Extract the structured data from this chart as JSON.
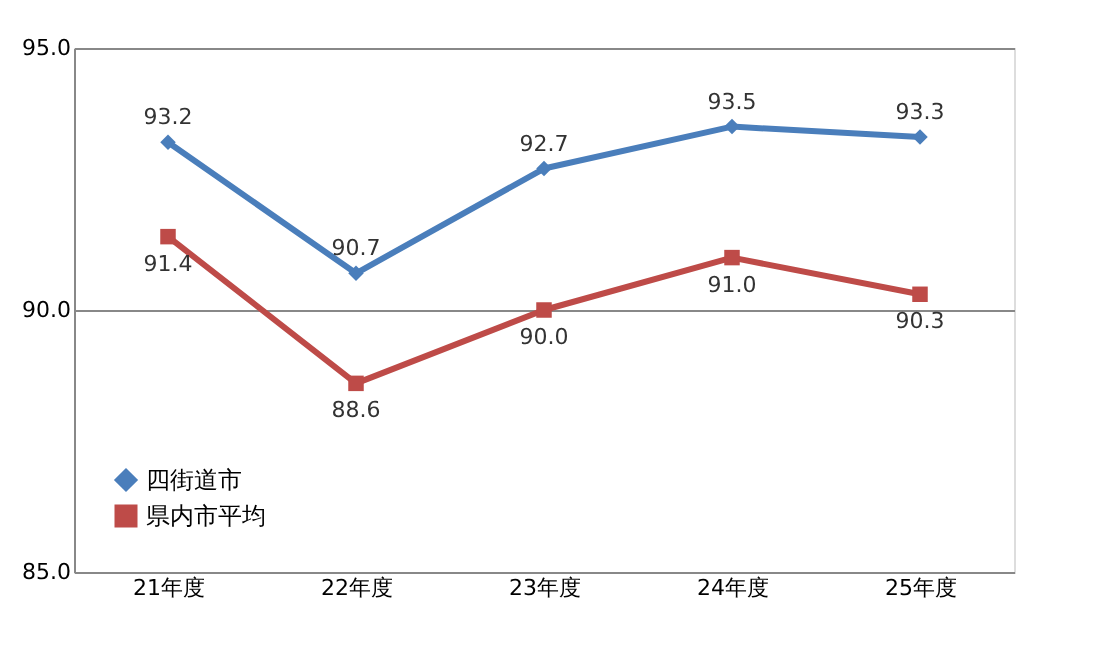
{
  "chart_data": {
    "type": "line",
    "categories": [
      "21年度",
      "22年度",
      "23年度",
      "24年度",
      "25年度"
    ],
    "series": [
      {
        "name": "四街道市",
        "color": "#4a7ebb",
        "marker": "diamond",
        "values": [
          93.2,
          90.7,
          92.7,
          93.5,
          93.3
        ],
        "value_labels": [
          "93.2",
          "90.7",
          "92.7",
          "93.5",
          "93.3"
        ]
      },
      {
        "name": "県内市平均",
        "color": "#be4b48",
        "marker": "square",
        "values": [
          91.4,
          88.6,
          90.0,
          91.0,
          90.3
        ],
        "value_labels": [
          "91.4",
          "88.6",
          "90.0",
          "91.0",
          "90.3"
        ]
      }
    ],
    "ylim": [
      85,
      95
    ],
    "yticks": [
      {
        "value": 85,
        "label": "85.0"
      },
      {
        "value": 90,
        "label": "90.0"
      },
      {
        "value": 95,
        "label": "95.0"
      }
    ],
    "grid": "y",
    "legend": "bottom left"
  }
}
